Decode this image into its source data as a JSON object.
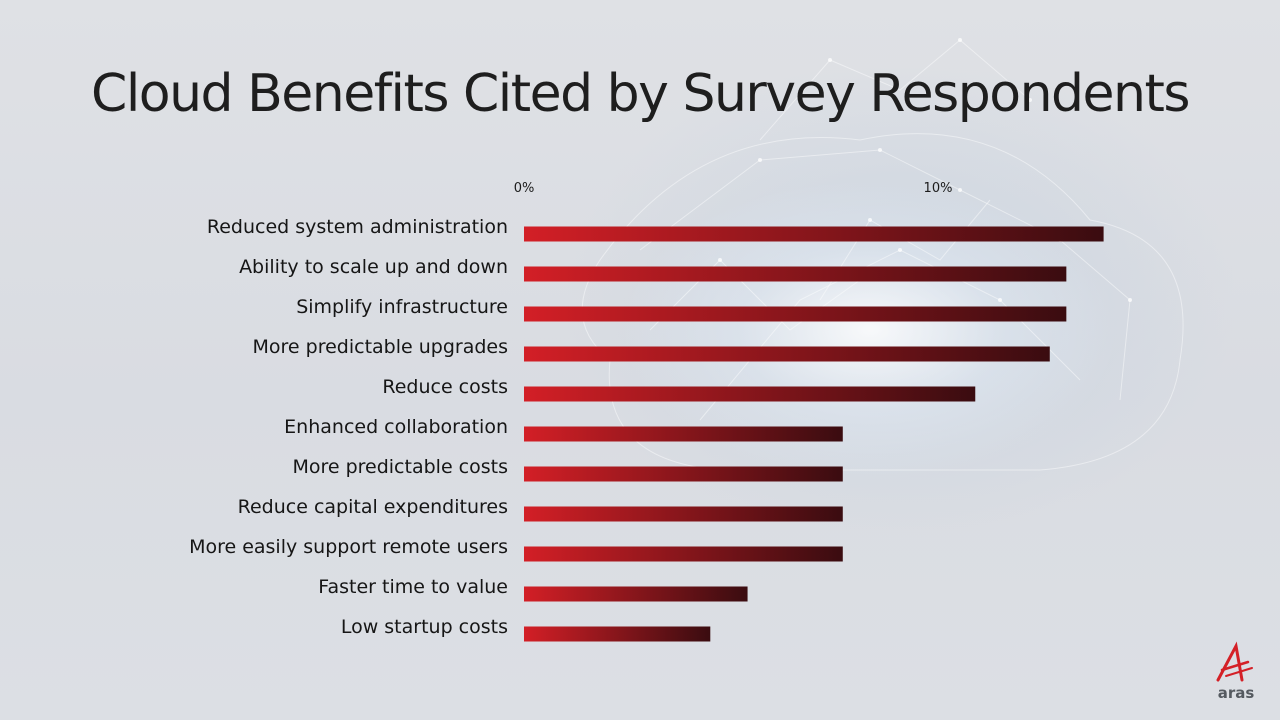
{
  "chart_data": {
    "type": "bar",
    "orientation": "horizontal",
    "title": "Cloud Benefits Cited by Survey Respondents",
    "categories": [
      "Reduced system administration",
      "Ability to scale up and down",
      "Simplify infrastructure",
      "More predictable upgrades",
      "Reduce costs",
      "Enhanced collaboration",
      "More predictable costs",
      "Reduce capital expenditures",
      "More easily support remote users",
      "Faster time to value",
      "Low startup costs"
    ],
    "values": [
      14.0,
      13.1,
      13.1,
      12.7,
      10.9,
      7.7,
      7.7,
      7.7,
      7.7,
      5.4,
      4.5
    ],
    "xticks": [
      "0%",
      "10%"
    ],
    "xlim": [
      0,
      14
    ],
    "grid": false,
    "legend": false,
    "colors": {
      "bar_start": "#d31f26",
      "bar_end": "#3a0c10"
    }
  },
  "brand": {
    "logo_text": "aras",
    "logo_color": "#d42027"
  }
}
